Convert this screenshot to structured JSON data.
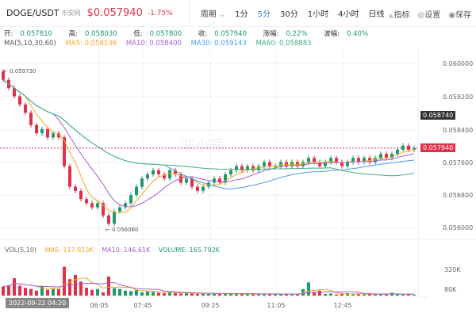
{
  "header": {
    "pair": "DOGE/USDT",
    "exchange": "币安网",
    "price": "$0.057940",
    "change": "-1.75%",
    "period_label": "周期",
    "intervals": [
      "1分",
      "5分",
      "30分",
      "1小时",
      "4小时",
      "日线"
    ],
    "active_interval": "5分",
    "tools": [
      {
        "icon": "indicator-icon",
        "label": "指标"
      },
      {
        "icon": "settings-icon",
        "label": "设置"
      },
      {
        "icon": "camera-icon",
        "label": "保存"
      }
    ]
  },
  "ohlc": {
    "open": "开:",
    "open_v": "0.057810",
    "high": "高:",
    "high_v": "0.058030",
    "low": "低:",
    "low_v": "0.057800",
    "close": "收:",
    "close_v": "0.057940",
    "chg": "涨幅:",
    "chg_v": "0.22%",
    "amp": "波幅:",
    "amp_v": "0.40%"
  },
  "ma": {
    "label": "MA(5,10,30,60)",
    "ma5": "MA5: 0.058136",
    "ma10": "MA10: 0.058400",
    "ma30": "MA30: 0.059143",
    "ma60": "MA60: 0.058883"
  },
  "colors": {
    "up": "#1f9a6a",
    "down": "#e0304a",
    "ma5": "#f5a623",
    "ma10": "#a35ed6",
    "ma30": "#4a9be8",
    "ma60": "#3fae7a"
  },
  "price_axis": [
    "0.060000",
    "0.059200",
    "0.058400",
    "0.057600",
    "0.056800",
    "0.056000"
  ],
  "tags": {
    "ref": "0.058740",
    "last": "0.057940",
    "high_mark": "0.059730",
    "low_mark": "0.056060"
  },
  "watermark": "非小号",
  "volume": {
    "label": "VOL(5,10)",
    "ma5": "MA5: 117.813K",
    "ma10": "MA10: 146.61K",
    "vol": "VOLUME: 165.792K",
    "axis": [
      "320K",
      "80K"
    ]
  },
  "time_axis": [
    "06:05",
    "07:45",
    "09:25",
    "11:05",
    "12:45"
  ],
  "cursor_date": "2022-09-22 04:20",
  "chart_data": {
    "type": "candlestick",
    "y_range": [
      0.0556,
      0.0602
    ],
    "close": [
      0.0596,
      0.0594,
      0.0592,
      0.059,
      0.0588,
      0.0585,
      0.0583,
      0.0584,
      0.0582,
      0.0583,
      0.0582,
      0.0575,
      0.057,
      0.0569,
      0.0567,
      0.0566,
      0.0565,
      0.0566,
      0.0563,
      0.0561,
      0.0564,
      0.0565,
      0.0566,
      0.0568,
      0.057,
      0.0572,
      0.0573,
      0.0574,
      0.0573,
      0.0572,
      0.0574,
      0.0573,
      0.0571,
      0.0572,
      0.057,
      0.0569,
      0.057,
      0.0571,
      0.0572,
      0.0571,
      0.0573,
      0.0574,
      0.0575,
      0.0574,
      0.0575,
      0.0574,
      0.0575,
      0.0576,
      0.0575,
      0.0575,
      0.0576,
      0.0575,
      0.0576,
      0.0575,
      0.0576,
      0.0577,
      0.0576,
      0.0575,
      0.0576,
      0.0577,
      0.0576,
      0.0575,
      0.0576,
      0.0577,
      0.0576,
      0.0577,
      0.0576,
      0.0577,
      0.0578,
      0.0577,
      0.0578,
      0.0579,
      0.058,
      0.0579,
      0.05794
    ],
    "volume_k": [
      110,
      125,
      210,
      120,
      95,
      80,
      60,
      110,
      70,
      90,
      80,
      350,
      200,
      250,
      170,
      95,
      70,
      80,
      40,
      230,
      90,
      80,
      60,
      55,
      70,
      40,
      50,
      45,
      35,
      30,
      40,
      30,
      25,
      30,
      25,
      20,
      25,
      20,
      30,
      20,
      25,
      20,
      20,
      25,
      20,
      18,
      20,
      15,
      20,
      18,
      15,
      20,
      15,
      18,
      80,
      160,
      40,
      60,
      20,
      25,
      15,
      20,
      30,
      15,
      20,
      15,
      18,
      15,
      20,
      15,
      35,
      15,
      12,
      15,
      10
    ]
  }
}
